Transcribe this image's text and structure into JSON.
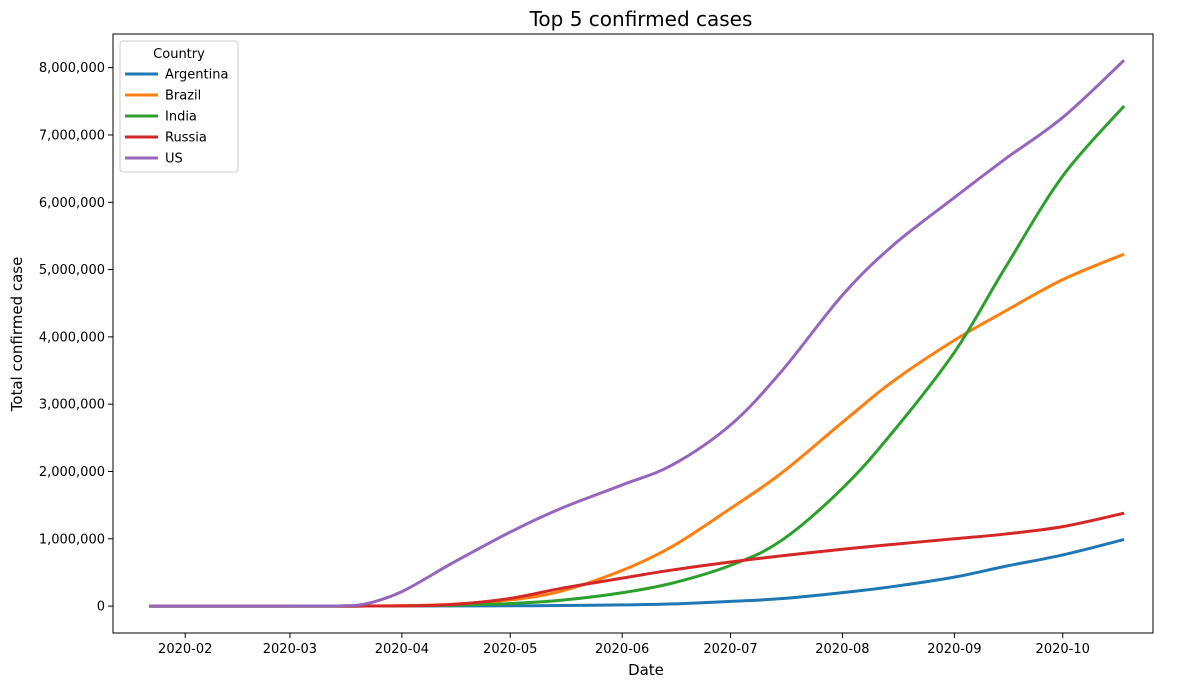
{
  "chart_data": {
    "type": "line",
    "title": "Top 5 confirmed cases",
    "xlabel": "Date",
    "ylabel": "Total confirmed case",
    "xlim": [
      "2020-01-12",
      "2020-10-26"
    ],
    "ylim": [
      -400000,
      8500000
    ],
    "x_ticks": [
      "2020-02-01",
      "2020-03-01",
      "2020-04-01",
      "2020-05-01",
      "2020-06-01",
      "2020-07-01",
      "2020-08-01",
      "2020-09-01",
      "2020-10-01"
    ],
    "x_tick_labels": [
      "2020-02",
      "2020-03",
      "2020-04",
      "2020-05",
      "2020-06",
      "2020-07",
      "2020-08",
      "2020-09",
      "2020-10"
    ],
    "y_ticks": [
      0,
      1000000,
      2000000,
      3000000,
      4000000,
      5000000,
      6000000,
      7000000,
      8000000
    ],
    "y_tick_labels": [
      "0",
      "1,000,000",
      "2,000,000",
      "3,000,000",
      "4,000,000",
      "5,000,000",
      "6,000,000",
      "7,000,000",
      "8,000,000"
    ],
    "grid": false,
    "legend": {
      "title": "Country",
      "placement": "top-left"
    },
    "x": [
      "2020-01-22",
      "2020-02-15",
      "2020-03-01",
      "2020-03-15",
      "2020-03-22",
      "2020-04-01",
      "2020-04-15",
      "2020-05-01",
      "2020-05-15",
      "2020-06-01",
      "2020-06-15",
      "2020-07-01",
      "2020-07-15",
      "2020-08-01",
      "2020-08-15",
      "2020-09-01",
      "2020-09-15",
      "2020-10-01",
      "2020-10-18"
    ],
    "series": [
      {
        "name": "Argentina",
        "color": "#1f77b4",
        "values": [
          0,
          0,
          0,
          50,
          300,
          1100,
          2500,
          4500,
          8000,
          17000,
          32000,
          70000,
          110000,
          200000,
          290000,
          430000,
          590000,
          760000,
          990000
        ]
      },
      {
        "name": "Brazil",
        "color": "#ff7f0e",
        "values": [
          0,
          0,
          2,
          200,
          1500,
          6800,
          28000,
          92000,
          220000,
          530000,
          890000,
          1450000,
          1970000,
          2730000,
          3340000,
          3950000,
          4380000,
          4850000,
          5230000
        ]
      },
      {
        "name": "India",
        "color": "#2ca02c",
        "values": [
          0,
          3,
          3,
          110,
          400,
          2000,
          12000,
          37000,
          86000,
          198000,
          343000,
          605000,
          970000,
          1750000,
          2590000,
          3770000,
          5020000,
          6390000,
          7430000
        ]
      },
      {
        "name": "Russia",
        "color": "#d62728",
        "values": [
          0,
          2,
          2,
          60,
          370,
          2800,
          24000,
          114000,
          262000,
          415000,
          537000,
          655000,
          746000,
          845000,
          917000,
          1000000,
          1070000,
          1180000,
          1380000
        ]
      },
      {
        "name": "US",
        "color": "#9467bd",
        "values": [
          1,
          15,
          75,
          3500,
          33000,
          215000,
          640000,
          1100000,
          1450000,
          1800000,
          2100000,
          2690000,
          3480000,
          4620000,
          5360000,
          6070000,
          6640000,
          7260000,
          8110000
        ]
      }
    ]
  }
}
